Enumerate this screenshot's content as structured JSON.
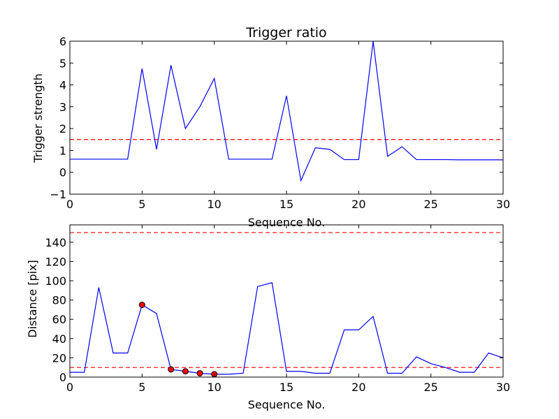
{
  "chart_data": [
    {
      "type": "line",
      "title": "Trigger ratio",
      "xlabel": "Sequence No.",
      "ylabel": "Trigger strength",
      "xlim": [
        0,
        30
      ],
      "ylim": [
        -1,
        6
      ],
      "xticks": [
        0,
        5,
        10,
        15,
        20,
        25,
        30
      ],
      "yticks": [
        -1,
        0,
        1,
        2,
        3,
        4,
        5,
        6
      ],
      "grid": false,
      "line_color": "#0000ff",
      "threshold_color": "#ff0000",
      "series": [
        {
          "x": [
            0,
            1,
            2,
            3,
            4,
            5,
            6,
            7,
            8,
            9,
            10,
            11,
            12,
            13,
            14,
            15,
            16,
            17,
            18,
            19,
            20,
            21,
            22,
            23,
            24,
            25,
            26,
            27,
            28,
            29,
            30
          ],
          "values": [
            0.6,
            0.6,
            0.6,
            0.6,
            0.6,
            4.75,
            1.05,
            4.9,
            2.0,
            3.0,
            4.3,
            0.6,
            0.6,
            0.6,
            0.6,
            3.5,
            -0.38,
            1.12,
            1.05,
            0.58,
            0.58,
            6.0,
            0.73,
            1.17,
            0.58,
            0.58,
            0.58,
            0.57,
            0.57,
            0.57,
            0.57
          ]
        }
      ],
      "thresholds": [
        1.5
      ],
      "markers": []
    },
    {
      "type": "line",
      "title": "",
      "xlabel": "Sequence No.",
      "ylabel": "Distance [pix]",
      "xlim": [
        0,
        30
      ],
      "ylim": [
        0,
        158
      ],
      "xticks": [
        0,
        5,
        10,
        15,
        20,
        25,
        30
      ],
      "yticks": [
        0,
        20,
        40,
        60,
        80,
        100,
        120,
        140
      ],
      "grid": false,
      "line_color": "#0000ff",
      "threshold_color": "#ff0000",
      "marker_color": "#ff0000",
      "series": [
        {
          "x": [
            0,
            1,
            2,
            3,
            4,
            5,
            6,
            7,
            8,
            9,
            10,
            11,
            12,
            13,
            14,
            15,
            16,
            17,
            18,
            19,
            20,
            21,
            22,
            23,
            24,
            25,
            26,
            27,
            28,
            29,
            30
          ],
          "values": [
            5,
            5,
            93,
            25,
            25,
            75,
            66,
            8,
            6,
            4,
            3,
            3,
            4,
            94,
            98,
            6,
            6,
            4,
            4,
            49,
            49,
            63,
            4,
            4,
            21,
            14,
            10,
            5,
            5,
            25,
            20
          ]
        }
      ],
      "thresholds": [
        150,
        10
      ],
      "markers": [
        {
          "x": 5,
          "y": 75
        },
        {
          "x": 7,
          "y": 8
        },
        {
          "x": 8,
          "y": 6
        },
        {
          "x": 9,
          "y": 4
        },
        {
          "x": 10,
          "y": 3
        }
      ]
    }
  ]
}
